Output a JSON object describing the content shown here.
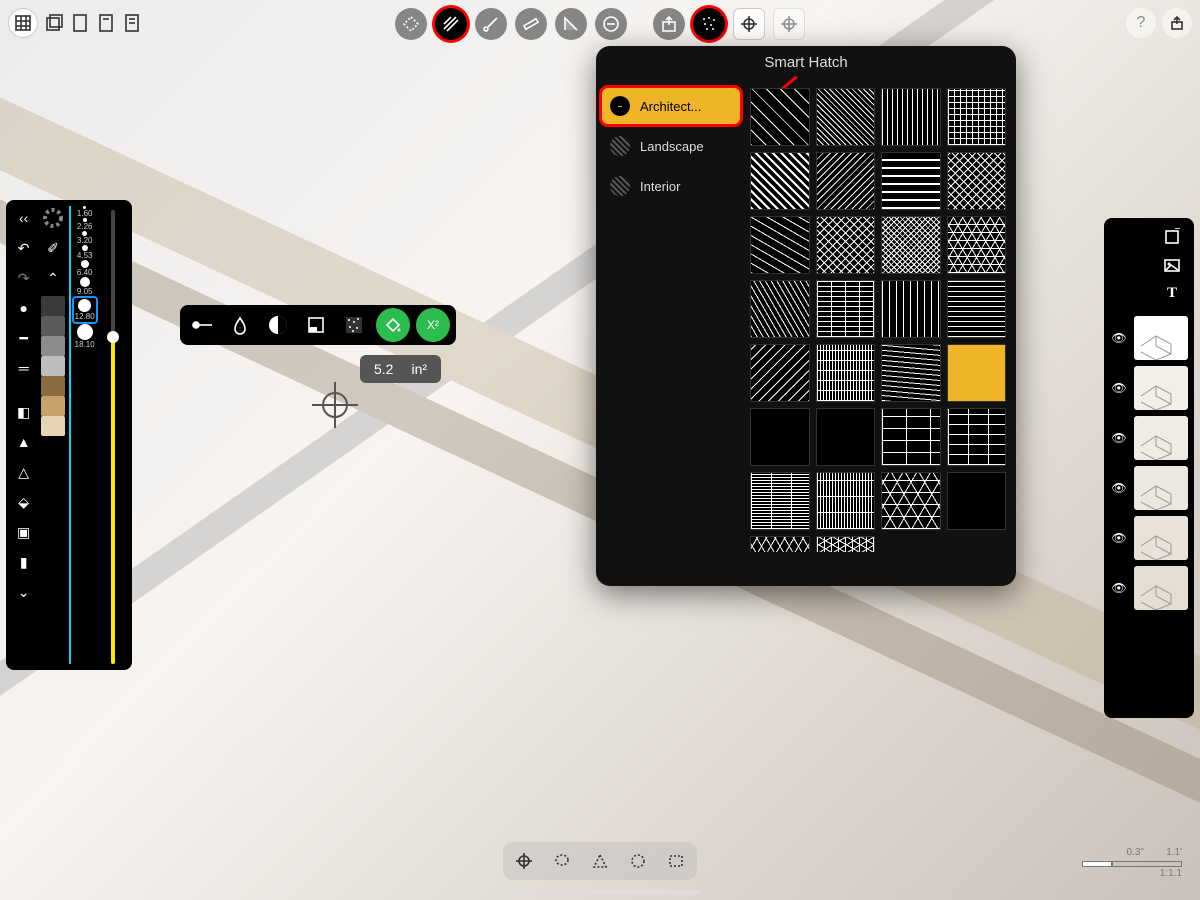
{
  "corner_tl": {
    "tools": [
      "grid",
      "undo",
      "redo",
      "layers",
      "more"
    ]
  },
  "corner_tr": {
    "tools": [
      "help",
      "share"
    ]
  },
  "top_toolbar": {
    "buttons": [
      {
        "name": "orbit-icon",
        "dark": false,
        "highlight": false
      },
      {
        "name": "hatch-fill-icon",
        "dark": true,
        "highlight": true
      },
      {
        "name": "snap-icon",
        "dark": false,
        "highlight": false
      },
      {
        "name": "ruler-icon",
        "dark": false,
        "highlight": false
      },
      {
        "name": "angle-icon",
        "dark": false,
        "highlight": false
      },
      {
        "name": "remove-icon",
        "dark": false,
        "highlight": false
      },
      {
        "name": "import-icon",
        "dark": false,
        "highlight": false
      },
      {
        "name": "smart-hatch-icon",
        "dark": true,
        "highlight": true
      },
      {
        "name": "target-a-icon",
        "square": true
      },
      {
        "name": "target-b-icon",
        "square": true
      }
    ]
  },
  "left_panel": {
    "nav": [
      "back",
      "color-wheel",
      "undo",
      "eyedropper",
      "redo",
      "chevron-up"
    ],
    "swatches": [
      "#3a3a3a",
      "#5a5a5a",
      "#8c8c8c",
      "#bdbdbd",
      "#8c6a3f",
      "#c7a16a",
      "#e7d4b5"
    ],
    "tools": [
      "dot",
      "line",
      "eraser",
      "pencil",
      "fine-pen",
      "brush",
      "marker",
      "fill",
      "chevron-down"
    ],
    "sizes": [
      {
        "label": "1.60",
        "d": 3
      },
      {
        "label": "2.26",
        "d": 4
      },
      {
        "label": "3.20",
        "d": 5
      },
      {
        "label": "4.53",
        "d": 6
      },
      {
        "label": "6.40",
        "d": 8
      },
      {
        "label": "9.05",
        "d": 10
      },
      {
        "label": "12.80",
        "d": 13,
        "selected": true
      },
      {
        "label": "18.10",
        "d": 16
      }
    ],
    "slider": {
      "value_pct": 72,
      "track_color": "#444",
      "fill_color": "#ffe600"
    }
  },
  "brush_bar": {
    "items": [
      "stroke",
      "water",
      "blend",
      "area",
      "grain"
    ],
    "green": [
      {
        "name": "fill-bucket-icon"
      },
      {
        "name": "squared-x-icon",
        "label": "X²"
      }
    ]
  },
  "measurement": {
    "value": "5.2",
    "unit": "in²"
  },
  "popover": {
    "title": "Smart Hatch",
    "categories": [
      {
        "label": "Architect...",
        "selected": true,
        "highlight": true
      },
      {
        "label": "Landscape",
        "selected": false
      },
      {
        "label": "Interior",
        "selected": false
      }
    ],
    "grid_count": 32,
    "selected_index": 19,
    "accent_color": "#f0b429",
    "highlight_color": "#ff0000"
  },
  "right_panel": {
    "top_tools": [
      "page",
      "image",
      "text"
    ],
    "layers": [
      {
        "eye": true,
        "dots": true,
        "thumb": "#ffffff"
      },
      {
        "eye": true,
        "dots": true,
        "thumb": "#f2efe9"
      },
      {
        "eye": true,
        "dots": true,
        "thumb": "#efece6"
      },
      {
        "eye": true,
        "dots": true,
        "thumb": "#ece7df"
      },
      {
        "eye": true,
        "dots": true,
        "thumb": "#e8e2d8"
      },
      {
        "eye": true,
        "dots": true,
        "thumb": "#e5dfd3"
      }
    ]
  },
  "bottom_bar": {
    "tools": [
      "target",
      "lasso",
      "shape",
      "circle",
      "rect"
    ]
  },
  "scale": {
    "left_label": "0.3\"",
    "right_label": "1.1'",
    "ratio": "1:1.1"
  },
  "colors": {
    "panel_bg": "#000000",
    "accent": "#f0b429",
    "highlight": "#ff0000",
    "green": "#2dbd4e"
  }
}
